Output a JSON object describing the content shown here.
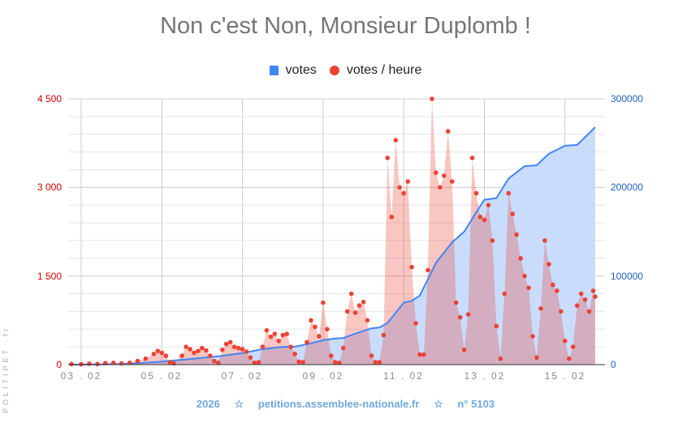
{
  "title": "Non c'est Non, Monsieur Duplomb !",
  "legend": [
    {
      "label": "votes",
      "color": "#4285f4",
      "shape": "square"
    },
    {
      "label": "votes / heure",
      "color": "#ea4335",
      "shape": "circle"
    }
  ],
  "axes": {
    "left_ticks": [
      "4 500",
      "3 000",
      "1 500",
      "0"
    ],
    "right_ticks": [
      "300000",
      "200000",
      "100000",
      "0"
    ],
    "x_ticks": [
      "03 . 02",
      "05 . 02",
      "07 . 02",
      "09 . 02",
      "11 . 02",
      "13 . 02",
      "15 . 02"
    ]
  },
  "footer": {
    "year": "2026",
    "star1": "☆",
    "site": "petitions.assemblee-nationale.fr",
    "star2": "☆",
    "number": "n° 5103"
  },
  "watermark": "POLITIPET .fr",
  "colors": {
    "votes_line": "#4285f4",
    "votes_fill": "#c6dafc",
    "hourly_dot": "#ea4335",
    "hourly_fill": "#f4b6b0",
    "left_axis_text": "#d00000",
    "right_axis_text": "#1f5fbf"
  },
  "chart_data": {
    "type": "line",
    "title": "Non c'est Non, Monsieur Duplomb !",
    "xlabel": "",
    "ylabel_left": "votes / heure",
    "ylabel_right": "votes",
    "x_unit": "day of February 2026",
    "ylim_left": [
      0,
      4500
    ],
    "ylim_right": [
      0,
      300000
    ],
    "grid": true,
    "legend_position": "top",
    "categories": [
      "03.02",
      "05.02",
      "07.02",
      "09.02",
      "11.02",
      "13.02",
      "15.02"
    ],
    "series": [
      {
        "name": "votes",
        "axis": "right",
        "type": "area-line",
        "points": [
          [
            2.76,
            0
          ],
          [
            3.5,
            200
          ],
          [
            4.0,
            600
          ],
          [
            4.5,
            1800
          ],
          [
            5.0,
            3500
          ],
          [
            5.5,
            5500
          ],
          [
            6.0,
            7500
          ],
          [
            6.5,
            10000
          ],
          [
            7.0,
            13000
          ],
          [
            7.5,
            17500
          ],
          [
            8.0,
            20000
          ],
          [
            8.3,
            20200
          ],
          [
            8.6,
            23000
          ],
          [
            9.0,
            27500
          ],
          [
            9.3,
            29500
          ],
          [
            9.5,
            30000
          ],
          [
            9.8,
            35000
          ],
          [
            10.2,
            41000
          ],
          [
            10.4,
            42000
          ],
          [
            10.6,
            47000
          ],
          [
            11.0,
            70000
          ],
          [
            11.2,
            72000
          ],
          [
            11.4,
            78000
          ],
          [
            11.8,
            115000
          ],
          [
            12.2,
            138000
          ],
          [
            12.5,
            150000
          ],
          [
            12.8,
            172000
          ],
          [
            13.0,
            186000
          ],
          [
            13.3,
            188000
          ],
          [
            13.6,
            210000
          ],
          [
            14.0,
            224000
          ],
          [
            14.3,
            225000
          ],
          [
            14.6,
            238000
          ],
          [
            15.0,
            247000
          ],
          [
            15.3,
            248000
          ],
          [
            15.75,
            268000
          ]
        ]
      },
      {
        "name": "votes / heure",
        "axis": "left",
        "type": "area-scatter",
        "points": [
          [
            2.76,
            10
          ],
          [
            3.0,
            5
          ],
          [
            3.2,
            15
          ],
          [
            3.4,
            10
          ],
          [
            3.6,
            25
          ],
          [
            3.8,
            30
          ],
          [
            4.0,
            20
          ],
          [
            4.2,
            30
          ],
          [
            4.4,
            60
          ],
          [
            4.6,
            100
          ],
          [
            4.8,
            180
          ],
          [
            4.9,
            230
          ],
          [
            5.0,
            200
          ],
          [
            5.1,
            150
          ],
          [
            5.2,
            40
          ],
          [
            5.3,
            20
          ],
          [
            5.5,
            150
          ],
          [
            5.6,
            300
          ],
          [
            5.7,
            260
          ],
          [
            5.8,
            200
          ],
          [
            5.9,
            230
          ],
          [
            6.0,
            280
          ],
          [
            6.1,
            240
          ],
          [
            6.2,
            150
          ],
          [
            6.3,
            60
          ],
          [
            6.4,
            30
          ],
          [
            6.5,
            250
          ],
          [
            6.6,
            350
          ],
          [
            6.7,
            380
          ],
          [
            6.8,
            300
          ],
          [
            6.9,
            280
          ],
          [
            7.0,
            260
          ],
          [
            7.1,
            220
          ],
          [
            7.2,
            120
          ],
          [
            7.3,
            30
          ],
          [
            7.4,
            40
          ],
          [
            7.5,
            300
          ],
          [
            7.6,
            580
          ],
          [
            7.7,
            470
          ],
          [
            7.8,
            520
          ],
          [
            7.9,
            400
          ],
          [
            8.0,
            500
          ],
          [
            8.1,
            520
          ],
          [
            8.2,
            300
          ],
          [
            8.3,
            180
          ],
          [
            8.4,
            50
          ],
          [
            8.5,
            40
          ],
          [
            8.6,
            380
          ],
          [
            8.7,
            750
          ],
          [
            8.8,
            640
          ],
          [
            8.9,
            480
          ],
          [
            9.0,
            1050
          ],
          [
            9.1,
            600
          ],
          [
            9.2,
            150
          ],
          [
            9.3,
            40
          ],
          [
            9.4,
            30
          ],
          [
            9.5,
            280
          ],
          [
            9.6,
            900
          ],
          [
            9.7,
            1200
          ],
          [
            9.8,
            880
          ],
          [
            9.9,
            1000
          ],
          [
            10.0,
            1060
          ],
          [
            10.1,
            750
          ],
          [
            10.2,
            150
          ],
          [
            10.3,
            40
          ],
          [
            10.4,
            40
          ],
          [
            10.5,
            500
          ],
          [
            10.6,
            3500
          ],
          [
            10.7,
            2500
          ],
          [
            10.8,
            3800
          ],
          [
            10.9,
            3000
          ],
          [
            11.0,
            2900
          ],
          [
            11.1,
            3100
          ],
          [
            11.2,
            1650
          ],
          [
            11.3,
            700
          ],
          [
            11.4,
            170
          ],
          [
            11.5,
            170
          ],
          [
            11.6,
            1600
          ],
          [
            11.7,
            4500
          ],
          [
            11.8,
            3250
          ],
          [
            11.9,
            3000
          ],
          [
            12.0,
            3200
          ],
          [
            12.1,
            3950
          ],
          [
            12.2,
            3100
          ],
          [
            12.3,
            1050
          ],
          [
            12.4,
            800
          ],
          [
            12.5,
            250
          ],
          [
            12.6,
            850
          ],
          [
            12.7,
            3500
          ],
          [
            12.8,
            2900
          ],
          [
            12.9,
            2500
          ],
          [
            13.0,
            2450
          ],
          [
            13.1,
            2700
          ],
          [
            13.2,
            2100
          ],
          [
            13.3,
            650
          ],
          [
            13.4,
            100
          ],
          [
            13.5,
            1200
          ],
          [
            13.6,
            2900
          ],
          [
            13.7,
            2550
          ],
          [
            13.8,
            2200
          ],
          [
            13.9,
            1800
          ],
          [
            14.0,
            1500
          ],
          [
            14.1,
            1300
          ],
          [
            14.2,
            480
          ],
          [
            14.3,
            120
          ],
          [
            14.4,
            950
          ],
          [
            14.5,
            2100
          ],
          [
            14.6,
            1700
          ],
          [
            14.7,
            1350
          ],
          [
            14.8,
            1250
          ],
          [
            14.9,
            900
          ],
          [
            15.0,
            400
          ],
          [
            15.1,
            100
          ],
          [
            15.2,
            300
          ],
          [
            15.3,
            1000
          ],
          [
            15.4,
            1200
          ],
          [
            15.5,
            1100
          ],
          [
            15.6,
            900
          ],
          [
            15.7,
            1250
          ],
          [
            15.75,
            1150
          ]
        ]
      }
    ]
  }
}
